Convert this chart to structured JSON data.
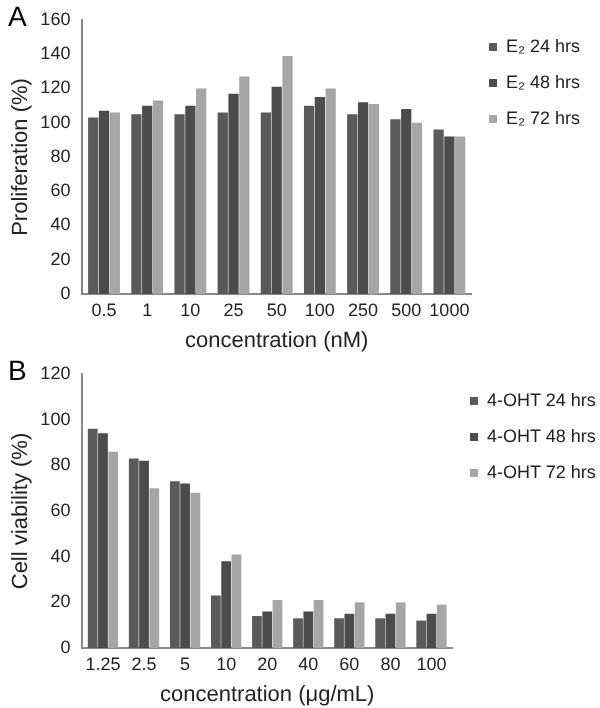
{
  "chart_data": [
    {
      "type": "bar",
      "annotations": [
        "A"
      ],
      "xlabel": "concentration (nM)",
      "ylabel": "Proliferation (%)",
      "categories": [
        "0.5",
        "1",
        "10",
        "25",
        "50",
        "100",
        "250",
        "500",
        "1000"
      ],
      "series": [
        {
          "name": "E₂ 24 hrs",
          "color": "#5a5a5a",
          "values": [
            103,
            105,
            105,
            106,
            106,
            110,
            105,
            102,
            96
          ]
        },
        {
          "name": "E₂ 48 hrs",
          "color": "#4c4c4c",
          "values": [
            107,
            110,
            110,
            117,
            121,
            115,
            112,
            108,
            92
          ]
        },
        {
          "name": "E₂ 72 hrs",
          "color": "#a6a6a6",
          "values": [
            106,
            113,
            120,
            127,
            139,
            120,
            111,
            100,
            92
          ]
        }
      ],
      "ylim": [
        0,
        160
      ],
      "yticks": [
        0,
        20,
        40,
        60,
        80,
        100,
        120,
        140,
        160
      ],
      "grid": false,
      "legend": "right"
    },
    {
      "type": "bar",
      "annotations": [
        "B"
      ],
      "xlabel": "concentration (μg/mL)",
      "ylabel": "Cell viability (%)",
      "categories": [
        "1.25",
        "2.5",
        "5",
        "10",
        "20",
        "40",
        "60",
        "80",
        "100"
      ],
      "series": [
        {
          "name": "4-OHT 24 hrs",
          "color": "#5a5a5a",
          "values": [
            96,
            83,
            73,
            23,
            14,
            13,
            13,
            13,
            12
          ]
        },
        {
          "name": "4-OHT 48 hrs",
          "color": "#4c4c4c",
          "values": [
            94,
            82,
            72,
            38,
            16,
            16,
            15,
            15,
            15
          ]
        },
        {
          "name": "4-OHT 72 hrs",
          "color": "#a6a6a6",
          "values": [
            86,
            70,
            68,
            41,
            21,
            21,
            20,
            20,
            19
          ]
        }
      ],
      "ylim": [
        0,
        120
      ],
      "yticks": [
        0,
        20,
        40,
        60,
        80,
        100,
        120
      ],
      "grid": false,
      "legend": "right"
    }
  ]
}
